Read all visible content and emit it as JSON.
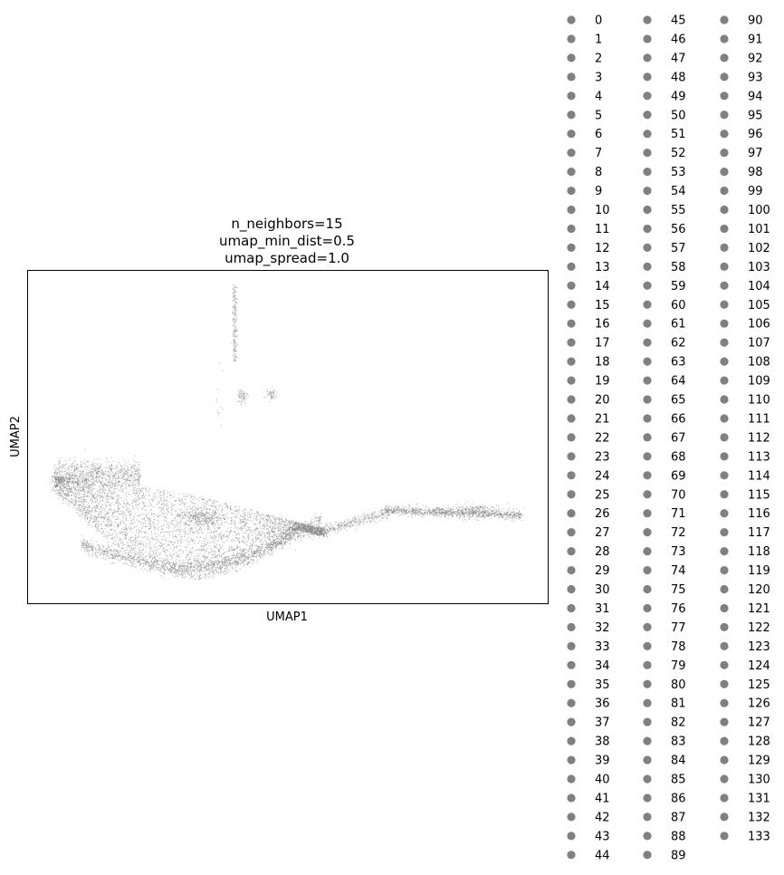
{
  "chart_data": {
    "type": "scatter",
    "title_lines": [
      "n_neighbors=15",
      "umap_min_dist=0.5",
      "umap_spread=1.0"
    ],
    "xlabel": "UMAP1",
    "ylabel": "UMAP2",
    "grid": false,
    "ticks_shown": false,
    "point_color": "#808080",
    "legend_placement": "right, outside plot, 3 columns",
    "legend_entries": [
      "0",
      "1",
      "2",
      "3",
      "4",
      "5",
      "6",
      "7",
      "8",
      "9",
      "10",
      "11",
      "12",
      "13",
      "14",
      "15",
      "16",
      "17",
      "18",
      "19",
      "20",
      "21",
      "22",
      "23",
      "24",
      "25",
      "26",
      "27",
      "28",
      "29",
      "30",
      "31",
      "32",
      "33",
      "34",
      "35",
      "36",
      "37",
      "38",
      "39",
      "40",
      "41",
      "42",
      "43",
      "44",
      "45",
      "46",
      "47",
      "48",
      "49",
      "50",
      "51",
      "52",
      "53",
      "54",
      "55",
      "56",
      "57",
      "58",
      "59",
      "60",
      "61",
      "62",
      "63",
      "64",
      "65",
      "66",
      "67",
      "68",
      "69",
      "70",
      "71",
      "72",
      "73",
      "74",
      "75",
      "76",
      "77",
      "78",
      "79",
      "80",
      "81",
      "82",
      "83",
      "84",
      "85",
      "86",
      "87",
      "88",
      "89",
      "90",
      "91",
      "92",
      "93",
      "94",
      "95",
      "96",
      "97",
      "98",
      "99",
      "100",
      "101",
      "102",
      "103",
      "104",
      "105",
      "106",
      "107",
      "108",
      "109",
      "110",
      "111",
      "112",
      "113",
      "114",
      "115",
      "116",
      "117",
      "118",
      "119",
      "120",
      "121",
      "122",
      "123",
      "124",
      "125",
      "126",
      "127",
      "128",
      "129",
      "130",
      "131",
      "132",
      "133"
    ],
    "legend_marker_color": "#808080"
  }
}
